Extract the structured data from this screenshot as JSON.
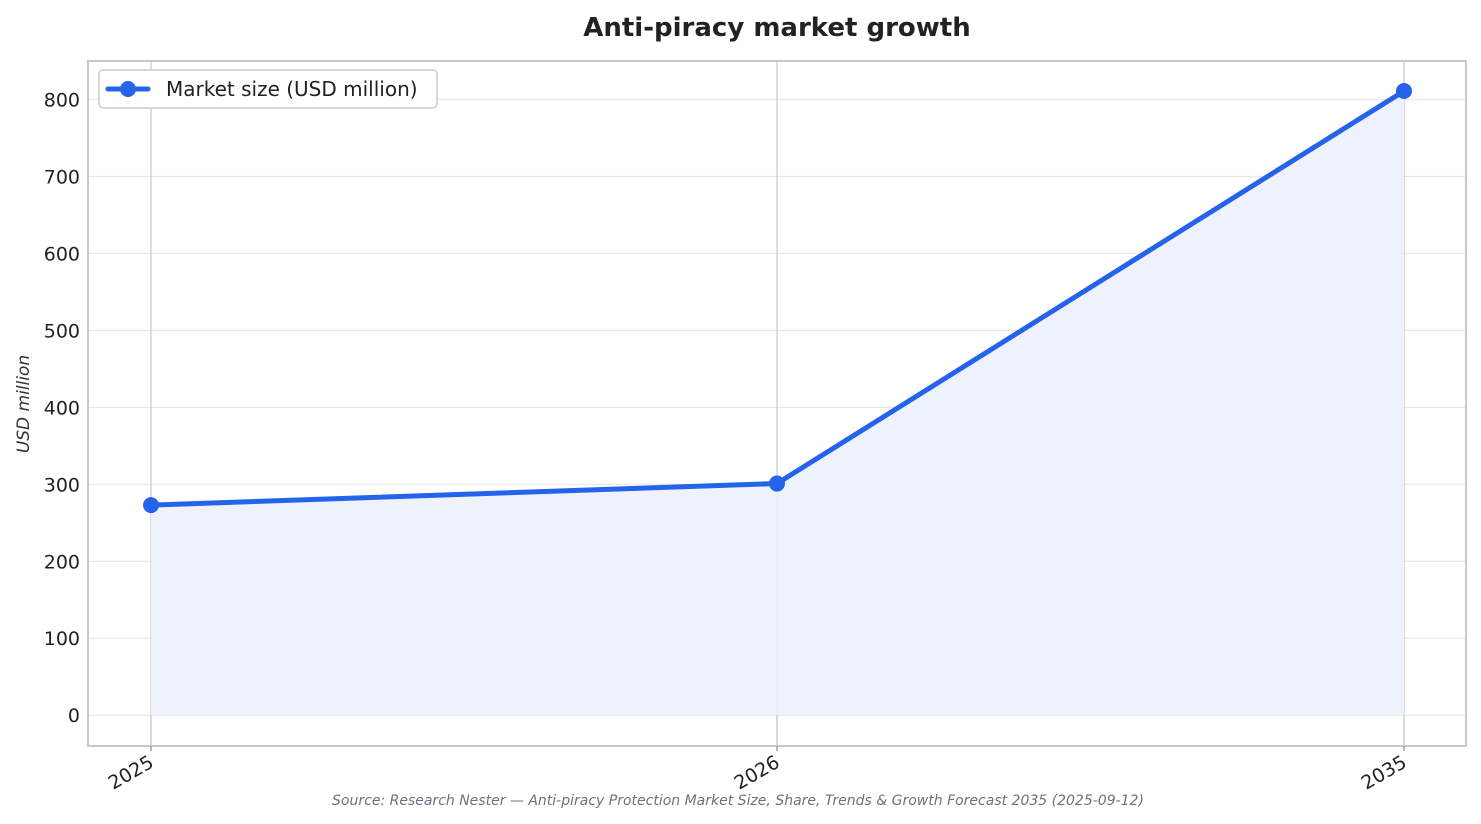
{
  "chart_data": {
    "type": "line",
    "title": "Anti-piracy market growth",
    "xlabel": "",
    "ylabel": "USD million",
    "categories": [
      "2025",
      "2026",
      "2035"
    ],
    "series": [
      {
        "name": "Market size (USD million)",
        "values": [
          273,
          301,
          811
        ]
      }
    ],
    "ylim": [
      -40,
      850
    ],
    "yticks": [
      0,
      100,
      200,
      300,
      400,
      500,
      600,
      700,
      800
    ],
    "grid": true,
    "area_fill": true,
    "legend_position": "top-left",
    "source": "Source: Research Nester — Anti-piracy Protection Market Size, Share, Trends & Growth Forecast 2035 (2025-09-12)",
    "colors": {
      "line": "#2563eb",
      "fill": "#ecf1fc",
      "grid": "#e8e8e8",
      "vgrid": "#c8c8cc",
      "frame": "#c8c8c8"
    }
  }
}
